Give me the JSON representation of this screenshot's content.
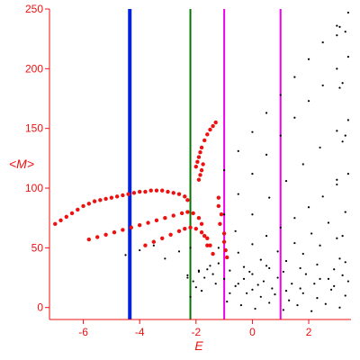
{
  "chart_data": {
    "type": "scatter",
    "title": "",
    "xlabel": "E",
    "ylabel": "<M>",
    "xlim": [
      -7.2,
      3.5
    ],
    "ylim": [
      -10,
      250
    ],
    "x_ticks": [
      -6,
      -4,
      -2,
      0,
      2
    ],
    "x_tick_labels": [
      "-6",
      "-4",
      "-2",
      "0",
      "2"
    ],
    "y_ticks": [
      0,
      50,
      100,
      150,
      200,
      250
    ],
    "y_tick_labels": [
      "0",
      "50",
      "100",
      "150",
      "200",
      "250"
    ],
    "grid": false,
    "legend": "none",
    "vertical_lines": [
      {
        "x": -4.35,
        "color": "#0022dd"
      },
      {
        "x": -2.2,
        "color": "#007700"
      },
      {
        "x": -1.0,
        "color": "#ee00ee"
      },
      {
        "x": 1.0,
        "color": "#ee00ee"
      }
    ],
    "series": [
      {
        "color": "#ee1111",
        "points": [
          [
            -7.0,
            70
          ],
          [
            -6.8,
            73
          ],
          [
            -6.6,
            76
          ],
          [
            -6.4,
            79
          ],
          [
            -6.2,
            82
          ],
          [
            -6.0,
            85
          ],
          [
            -5.8,
            87
          ],
          [
            -5.6,
            89
          ],
          [
            -5.4,
            90
          ],
          [
            -5.2,
            91
          ],
          [
            -5.0,
            92
          ],
          [
            -4.8,
            93
          ],
          [
            -4.6,
            94
          ],
          [
            -4.4,
            95
          ],
          [
            -4.2,
            96
          ],
          [
            -4.0,
            97
          ],
          [
            -3.8,
            97
          ],
          [
            -3.6,
            98
          ],
          [
            -3.4,
            98
          ],
          [
            -3.2,
            98
          ],
          [
            -3.0,
            97
          ],
          [
            -2.8,
            96
          ],
          [
            -2.6,
            95
          ],
          [
            -2.4,
            93
          ],
          [
            -2.3,
            90
          ],
          [
            -5.8,
            57
          ],
          [
            -5.5,
            59
          ],
          [
            -5.2,
            61
          ],
          [
            -4.9,
            63
          ],
          [
            -4.6,
            65
          ],
          [
            -4.3,
            67
          ],
          [
            -4.0,
            69
          ],
          [
            -3.7,
            71
          ],
          [
            -3.4,
            73
          ],
          [
            -3.1,
            75
          ],
          [
            -2.8,
            77
          ],
          [
            -2.5,
            79
          ],
          [
            -2.3,
            80
          ],
          [
            -2.1,
            79
          ],
          [
            -1.9,
            75
          ],
          [
            -1.8,
            70
          ],
          [
            -1.7,
            60
          ],
          [
            -1.6,
            52
          ],
          [
            -3.8,
            52
          ],
          [
            -3.5,
            55
          ],
          [
            -3.2,
            58
          ],
          [
            -2.9,
            61
          ],
          [
            -2.6,
            64
          ],
          [
            -2.4,
            66
          ],
          [
            -2.2,
            67
          ],
          [
            -2.0,
            66
          ],
          [
            -1.8,
            63
          ],
          [
            -1.6,
            58
          ],
          [
            -1.5,
            52
          ],
          [
            -1.4,
            45
          ],
          [
            -2.0,
            118
          ],
          [
            -1.95,
            122
          ],
          [
            -1.9,
            126
          ],
          [
            -1.85,
            130
          ],
          [
            -1.8,
            134
          ],
          [
            -1.7,
            140
          ],
          [
            -1.6,
            145
          ],
          [
            -1.5,
            149
          ],
          [
            -1.4,
            152
          ],
          [
            -1.3,
            155
          ],
          [
            -1.9,
            107
          ],
          [
            -1.85,
            111
          ],
          [
            -1.8,
            115
          ],
          [
            -1.75,
            120
          ],
          [
            -1.2,
            92
          ],
          [
            -1.2,
            85
          ],
          [
            -1.1,
            78
          ],
          [
            -1.15,
            70
          ],
          [
            -1.0,
            62
          ],
          [
            -1.0,
            55
          ],
          [
            -0.95,
            48
          ],
          [
            -0.9,
            42
          ]
        ]
      },
      {
        "color": "#000000",
        "points": [
          [
            -1.0,
            115
          ],
          [
            -0.5,
            131
          ],
          [
            0.0,
            147
          ],
          [
            0.5,
            163
          ],
          [
            1.0,
            178
          ],
          [
            1.5,
            193
          ],
          [
            2.0,
            208
          ],
          [
            2.5,
            222
          ],
          [
            3.0,
            236
          ],
          [
            3.4,
            247
          ],
          [
            -1.0,
            78
          ],
          [
            -0.5,
            95
          ],
          [
            0.0,
            112
          ],
          [
            0.5,
            128
          ],
          [
            1.0,
            144
          ],
          [
            1.5,
            159
          ],
          [
            2.0,
            173
          ],
          [
            2.5,
            186
          ],
          [
            3.0,
            200
          ],
          [
            3.4,
            210
          ],
          [
            -1.2,
            50
          ],
          [
            -0.6,
            64
          ],
          [
            0.0,
            78
          ],
          [
            0.6,
            92
          ],
          [
            1.2,
            106
          ],
          [
            1.8,
            120
          ],
          [
            2.4,
            134
          ],
          [
            3.0,
            148
          ],
          [
            3.4,
            157
          ],
          [
            -3.1,
            41
          ],
          [
            -2.6,
            47
          ],
          [
            -2.2,
            50
          ],
          [
            -4.5,
            44
          ],
          [
            -4.0,
            48
          ],
          [
            -3.5,
            52
          ],
          [
            -0.5,
            46
          ],
          [
            0.0,
            53
          ],
          [
            0.5,
            60
          ],
          [
            1.0,
            67
          ],
          [
            1.5,
            75
          ],
          [
            2.0,
            84
          ],
          [
            2.5,
            93
          ],
          [
            3.0,
            103
          ],
          [
            3.4,
            112
          ],
          [
            -0.3,
            34
          ],
          [
            0.3,
            40
          ],
          [
            0.9,
            47
          ],
          [
            1.5,
            54
          ],
          [
            2.1,
            62
          ],
          [
            2.7,
            71
          ],
          [
            3.3,
            80
          ],
          [
            -2.3,
            27
          ],
          [
            -1.9,
            31
          ],
          [
            -1.5,
            35
          ],
          [
            -1.2,
            37
          ],
          [
            0.0,
            28
          ],
          [
            0.6,
            33
          ],
          [
            1.2,
            39
          ],
          [
            1.8,
            45
          ],
          [
            2.4,
            52
          ],
          [
            3.0,
            58
          ],
          [
            -0.8,
            31
          ],
          [
            -0.3,
            24
          ],
          [
            0.2,
            19
          ],
          [
            0.7,
            16
          ],
          [
            1.2,
            14
          ],
          [
            1.7,
            16
          ],
          [
            2.2,
            20
          ],
          [
            2.7,
            24
          ],
          [
            3.2,
            27
          ],
          [
            -0.6,
            18
          ],
          [
            -0.2,
            12
          ],
          [
            0.3,
            9
          ],
          [
            0.8,
            11
          ],
          [
            1.3,
            6
          ],
          [
            1.8,
            12
          ],
          [
            2.3,
            8
          ],
          [
            2.8,
            15
          ],
          [
            3.3,
            10
          ],
          [
            -1.0,
            24
          ],
          [
            -0.5,
            20
          ],
          [
            0.0,
            15
          ],
          [
            0.4,
            22
          ],
          [
            0.9,
            25
          ],
          [
            1.4,
            20
          ],
          [
            1.9,
            28
          ],
          [
            2.4,
            24
          ],
          [
            2.9,
            18
          ],
          [
            3.4,
            22
          ],
          [
            -0.9,
            5
          ],
          [
            -0.4,
            2
          ],
          [
            0.1,
            -1
          ],
          [
            0.6,
            4
          ],
          [
            1.1,
            -2
          ],
          [
            1.6,
            2
          ],
          [
            2.1,
            -3
          ],
          [
            2.6,
            3
          ],
          [
            3.1,
            0
          ],
          [
            -0.8,
            12
          ],
          [
            -0.1,
            30
          ],
          [
            0.5,
            35
          ],
          [
            1.1,
            30
          ],
          [
            1.7,
            33
          ],
          [
            2.3,
            36
          ],
          [
            2.9,
            32
          ],
          [
            3.3,
            38
          ],
          [
            -1.4,
            28
          ],
          [
            -1.6,
            32
          ],
          [
            -1.3,
            20
          ],
          [
            -1.7,
            25
          ],
          [
            -2.1,
            22
          ],
          [
            -2.3,
            25
          ],
          [
            -1.9,
            30
          ],
          [
            -2.0,
            17
          ],
          [
            -1.8,
            14
          ],
          [
            -2.2,
            9
          ],
          [
            3.0,
            228
          ],
          [
            3.1,
            235
          ],
          [
            3.3,
            231
          ],
          [
            3.2,
            188
          ],
          [
            3.1,
            184
          ],
          [
            3.3,
            144
          ],
          [
            3.2,
            139
          ],
          [
            3.0,
            107
          ],
          [
            3.2,
            60
          ],
          [
            3.1,
            41
          ]
        ]
      }
    ]
  }
}
